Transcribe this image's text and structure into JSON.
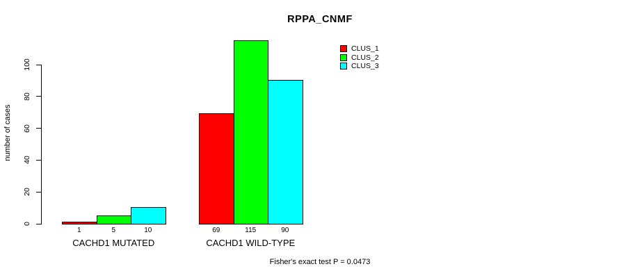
{
  "chart_data": {
    "type": "bar",
    "title": "RPPA_CNMF",
    "ylabel": "number of cases",
    "xlabel": "",
    "categories": [
      "CACHD1 MUTATED",
      "CACHD1 WILD-TYPE"
    ],
    "series": [
      {
        "name": "CLUS_1",
        "color": "#ff0000",
        "values": [
          1,
          69
        ]
      },
      {
        "name": "CLUS_2",
        "color": "#00ff00",
        "values": [
          5,
          115
        ]
      },
      {
        "name": "CLUS_3",
        "color": "#00ffff",
        "values": [
          10,
          90
        ]
      }
    ],
    "y_ticks": [
      0,
      20,
      40,
      60,
      80,
      100
    ],
    "ylim": [
      0,
      115
    ],
    "grid": false,
    "legend_position": "top-right",
    "annotation": "Fisher's exact test P = 0.0473"
  }
}
